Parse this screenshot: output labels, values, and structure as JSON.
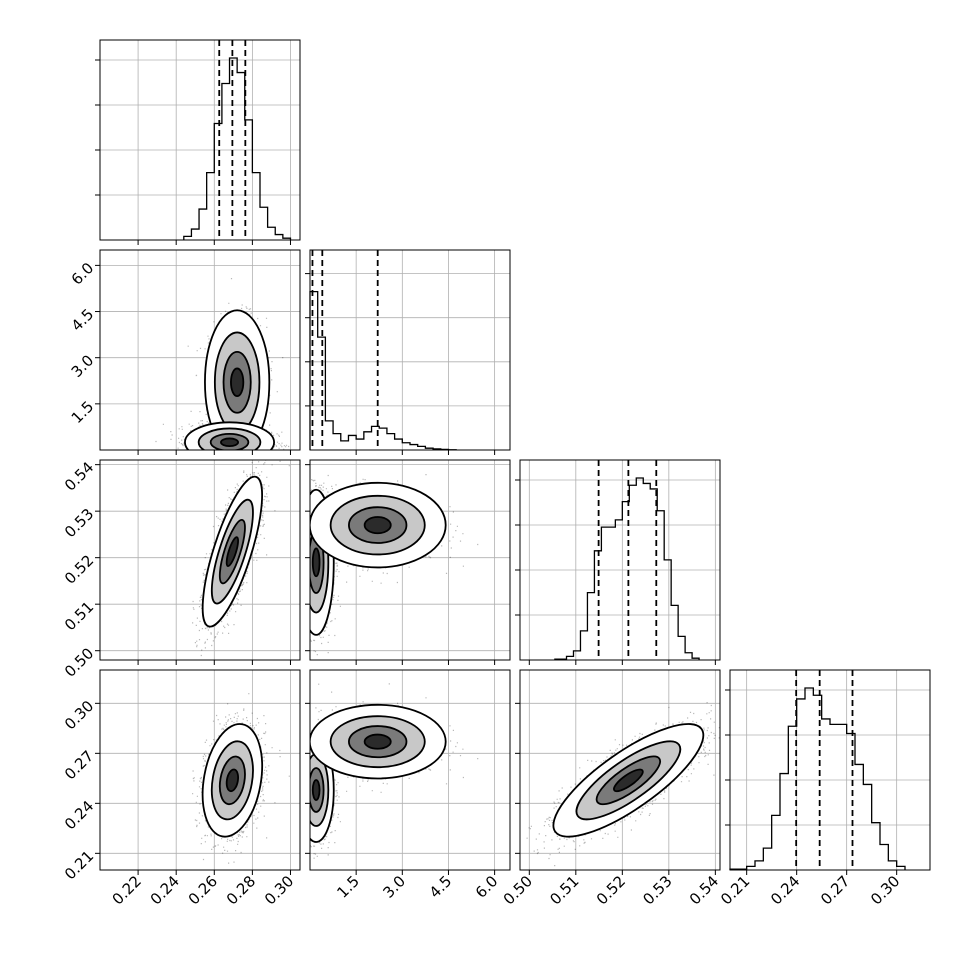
{
  "chart_data": {
    "type": "corner",
    "parameters": [
      {
        "index": 0,
        "range": [
          0.2,
          0.305
        ],
        "ticks": [
          0.22,
          0.24,
          0.26,
          0.28,
          0.3
        ],
        "tick_labels": [
          "0.22",
          "0.24",
          "0.26",
          "0.28",
          "0.30"
        ],
        "quantiles": [
          0.2626,
          0.2695,
          0.2763
        ],
        "hist": {
          "bins": [
            0.244,
            0.248,
            0.252,
            0.256,
            0.26,
            0.264,
            0.268,
            0.272,
            0.276,
            0.28,
            0.284,
            0.288,
            0.292,
            0.296
          ],
          "values": [
            0.02,
            0.06,
            0.17,
            0.37,
            0.64,
            0.86,
            1.0,
            0.92,
            0.66,
            0.37,
            0.18,
            0.07,
            0.03,
            0.01
          ]
        }
      },
      {
        "index": 1,
        "range": [
          0,
          6.5
        ],
        "ticks": [
          1.5,
          3.0,
          4.5,
          6.0
        ],
        "tick_labels": [
          "1.5",
          "3.0",
          "4.5",
          "6.0"
        ],
        "quantiles": [
          0.08,
          0.4,
          2.2
        ],
        "hist": {
          "bins": [
            0.0,
            0.25,
            0.5,
            0.75,
            1.0,
            1.25,
            1.5,
            1.75,
            2.0,
            2.25,
            2.5,
            2.75,
            3.0,
            3.25,
            3.5,
            3.75,
            4.0,
            4.25,
            4.5
          ],
          "values": [
            0.87,
            0.62,
            0.16,
            0.09,
            0.05,
            0.08,
            0.06,
            0.1,
            0.13,
            0.12,
            0.09,
            0.06,
            0.04,
            0.03,
            0.02,
            0.01,
            0.006,
            0.003,
            0.001
          ]
        }
      },
      {
        "index": 2,
        "range": [
          0.498,
          0.541
        ],
        "ticks": [
          0.5,
          0.51,
          0.52,
          0.53,
          0.54
        ],
        "tick_labels": [
          "0.50",
          "0.51",
          "0.52",
          "0.53",
          "0.54"
        ],
        "quantiles": [
          0.5149,
          0.5213,
          0.5273
        ],
        "hist": {
          "bins": [
            0.5055,
            0.508,
            0.5095,
            0.511,
            0.5125,
            0.514,
            0.5155,
            0.517,
            0.5185,
            0.52,
            0.5215,
            0.523,
            0.5245,
            0.526,
            0.5275,
            0.529,
            0.5305,
            0.532,
            0.5335,
            0.535
          ],
          "values": [
            0.005,
            0.02,
            0.05,
            0.16,
            0.37,
            0.6,
            0.73,
            0.73,
            0.77,
            0.87,
            0.96,
            1.0,
            0.97,
            0.94,
            0.82,
            0.55,
            0.3,
            0.13,
            0.04,
            0.01
          ]
        }
      },
      {
        "index": 3,
        "range": [
          0.2,
          0.32
        ],
        "ticks": [
          0.21,
          0.24,
          0.27,
          0.3
        ],
        "tick_labels": [
          "0.21",
          "0.24",
          "0.27",
          "0.30"
        ],
        "quantiles": [
          0.2397,
          0.2538,
          0.2735
        ],
        "hist": {
          "bins": [
            0.2,
            0.21,
            0.215,
            0.22,
            0.225,
            0.23,
            0.235,
            0.24,
            0.245,
            0.25,
            0.255,
            0.26,
            0.265,
            0.27,
            0.275,
            0.28,
            0.285,
            0.29,
            0.295,
            0.3,
            0.305
          ],
          "values": [
            0.005,
            0.02,
            0.05,
            0.12,
            0.3,
            0.53,
            0.79,
            0.94,
            1.0,
            0.96,
            0.83,
            0.8,
            0.8,
            0.75,
            0.58,
            0.47,
            0.26,
            0.14,
            0.05,
            0.02
          ]
        }
      }
    ],
    "pairs": [
      {
        "x": 0,
        "y": 1,
        "clusters": [
          {
            "cx": 0.272,
            "cy": 2.2,
            "sx": 0.0065,
            "sy": 0.9,
            "weight": 0.35
          },
          {
            "cx": 0.268,
            "cy": 0.25,
            "sx": 0.009,
            "sy": 0.25,
            "weight": 0.65
          }
        ]
      },
      {
        "x": 0,
        "y": 2,
        "clusters": [
          {
            "cx": 0.2695,
            "cy": 0.5213,
            "sx": 0.006,
            "sy": 0.0062,
            "rho": 0.75,
            "weight": 1.0
          }
        ]
      },
      {
        "x": 1,
        "y": 2,
        "clusters": [
          {
            "cx": 0.2,
            "cy": 0.519,
            "sx": 0.22,
            "sy": 0.006,
            "weight": 0.65
          },
          {
            "cx": 2.2,
            "cy": 0.527,
            "sx": 0.85,
            "sy": 0.0035,
            "weight": 0.35
          }
        ]
      },
      {
        "x": 0,
        "y": 3,
        "clusters": [
          {
            "cx": 0.2695,
            "cy": 0.2538,
            "sx": 0.006,
            "sy": 0.013,
            "rho": 0.25,
            "weight": 1.0
          }
        ]
      },
      {
        "x": 1,
        "y": 3,
        "clusters": [
          {
            "cx": 0.2,
            "cy": 0.248,
            "sx": 0.22,
            "sy": 0.012,
            "weight": 0.65
          },
          {
            "cx": 2.2,
            "cy": 0.277,
            "sx": 0.85,
            "sy": 0.0085,
            "weight": 0.35
          }
        ]
      },
      {
        "x": 2,
        "y": 3,
        "clusters": [
          {
            "cx": 0.5213,
            "cy": 0.2538,
            "sx": 0.0062,
            "sy": 0.013,
            "rho": 0.8,
            "weight": 1.0
          }
        ]
      }
    ],
    "quantile_line_style": "dashed",
    "grid": true,
    "title": "",
    "legend": "none"
  }
}
